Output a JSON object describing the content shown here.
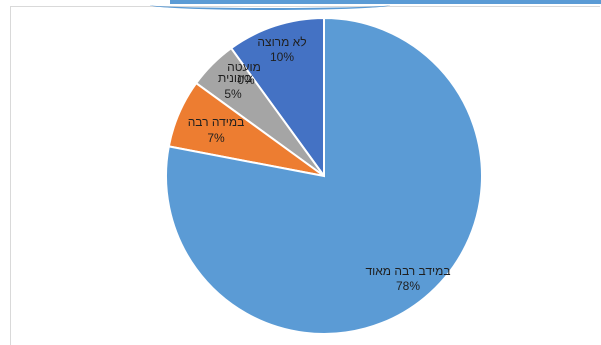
{
  "chart_data": {
    "type": "pie",
    "title": "",
    "slices": [
      {
        "label": "לא מרוצה",
        "value": 10,
        "pct_label": "10%",
        "color": "#4472c4"
      },
      {
        "label": "מועטה",
        "value": 0,
        "pct_label": "0%",
        "color": "#ffc000"
      },
      {
        "label": "בינונית",
        "value": 5,
        "pct_label": "5%",
        "color": "#a5a5a5"
      },
      {
        "label": "במידה רבה",
        "value": 7,
        "pct_label": "7%",
        "color": "#ed7d31"
      },
      {
        "label": "במידב רבה מאוד",
        "value": 78,
        "pct_label": "78%",
        "color": "#5b9bd5"
      }
    ],
    "start_angle_deg": 0,
    "direction": "counterclockwise",
    "legend": "none"
  }
}
